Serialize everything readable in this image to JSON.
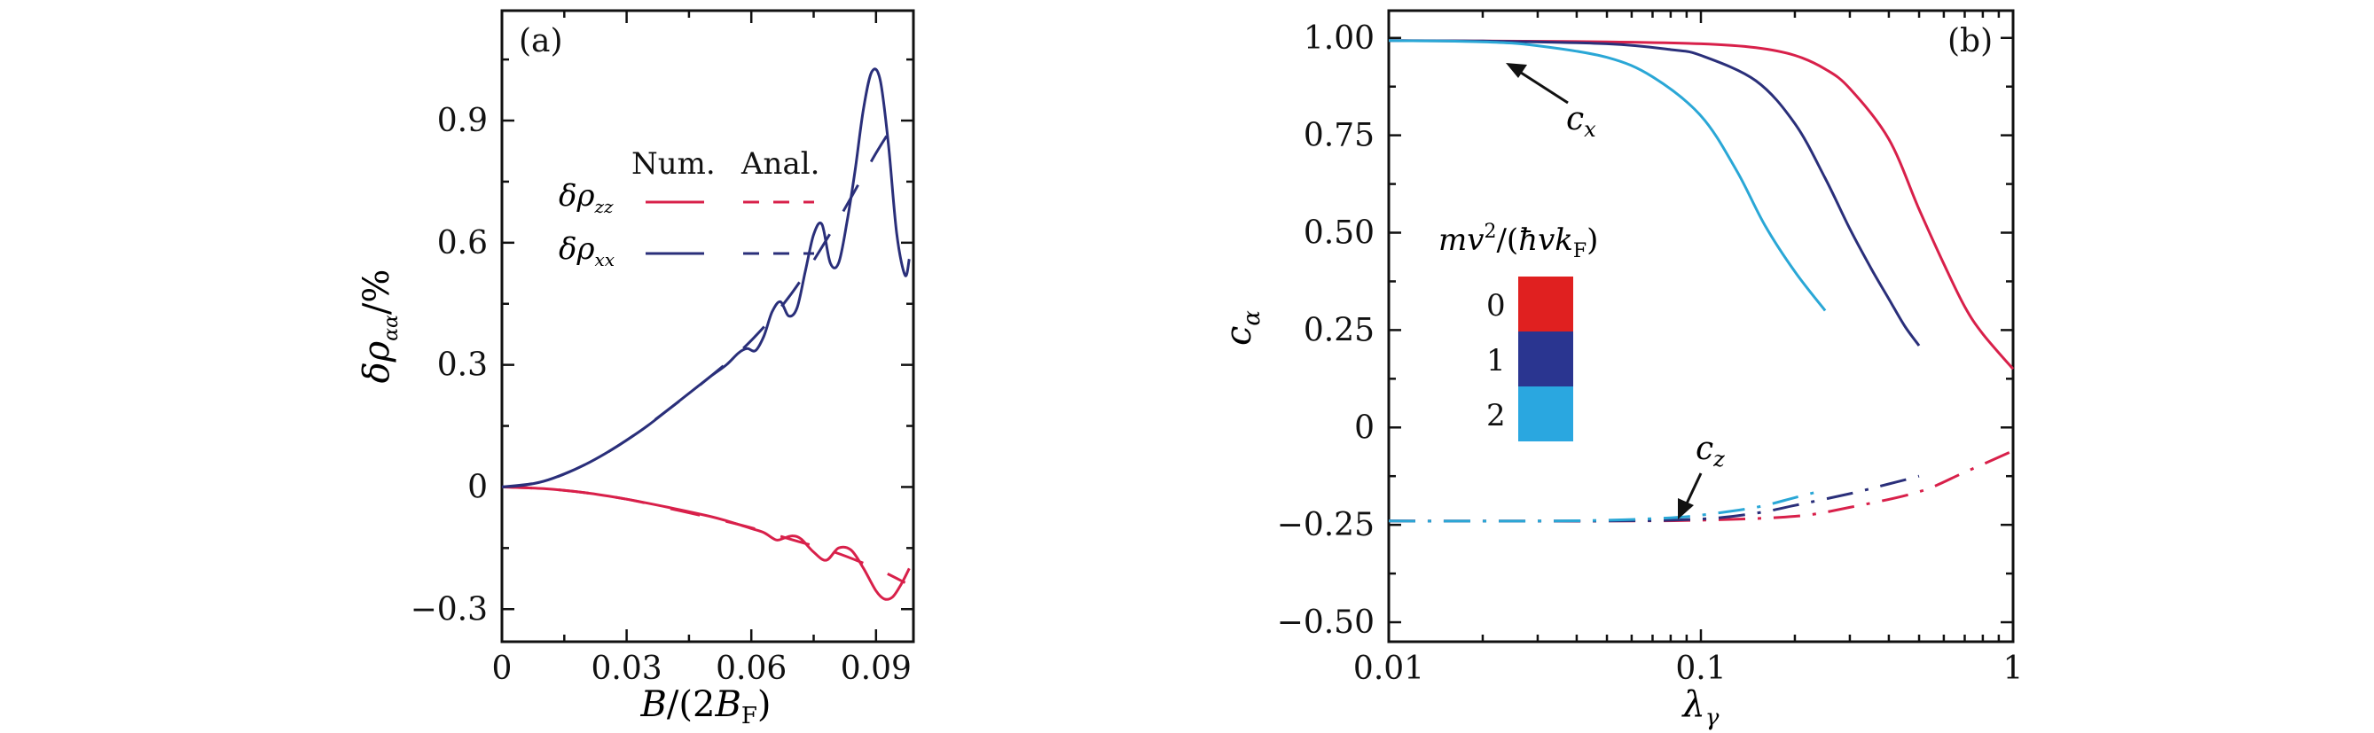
{
  "colors": {
    "red": "#d8204a",
    "navy": "#2a2f7a",
    "cyan": "#2aa7d6",
    "axis": "#111111",
    "swatch_red": "#e02020",
    "swatch_navy": "#2a3590",
    "swatch_cyan": "#2aa7e0"
  },
  "chart_data": [
    {
      "id": "a",
      "type": "line",
      "panel_label": "(a)",
      "xlabel": "B/(2B_F)",
      "ylabel": "δρ_αα/%",
      "xlim": [
        0,
        0.099
      ],
      "ylim": [
        -0.38,
        1.17
      ],
      "xticks": [
        0,
        0.03,
        0.06,
        0.09
      ],
      "xtick_labels": [
        "0",
        "0.03",
        "0.06",
        "0.09"
      ],
      "yticks": [
        -0.3,
        0,
        0.3,
        0.6,
        0.9
      ],
      "ytick_labels": [
        "−0.3",
        "0",
        "0.3",
        "0.6",
        "0.9"
      ],
      "legend": {
        "headers": [
          "Num.",
          "Anal."
        ],
        "rows": [
          {
            "label_base": "δρ",
            "label_sub": "zz",
            "color": "#d8204a"
          },
          {
            "label_base": "δρ",
            "label_sub": "xx",
            "color": "#2a2f7a"
          }
        ]
      },
      "series": [
        {
          "name": "δρ_zz Num.",
          "color": "#d8204a",
          "style": "solid",
          "x": [
            0,
            0.01,
            0.02,
            0.03,
            0.04,
            0.05,
            0.055,
            0.06,
            0.063,
            0.066,
            0.068,
            0.07,
            0.072,
            0.075,
            0.078,
            0.081,
            0.084,
            0.087,
            0.09,
            0.092,
            0.094,
            0.096,
            0.098
          ],
          "y": [
            0,
            -0.004,
            -0.014,
            -0.03,
            -0.05,
            -0.072,
            -0.086,
            -0.102,
            -0.112,
            -0.13,
            -0.125,
            -0.12,
            -0.128,
            -0.16,
            -0.18,
            -0.15,
            -0.155,
            -0.2,
            -0.255,
            -0.275,
            -0.27,
            -0.24,
            -0.2
          ]
        },
        {
          "name": "δρ_zz Anal.",
          "color": "#d8204a",
          "style": "dashed",
          "x": [
            0,
            0.01,
            0.02,
            0.03,
            0.04,
            0.05,
            0.06,
            0.07,
            0.08,
            0.09,
            0.097
          ],
          "y": [
            0,
            -0.004,
            -0.014,
            -0.03,
            -0.052,
            -0.075,
            -0.1,
            -0.13,
            -0.16,
            -0.2,
            -0.235
          ]
        },
        {
          "name": "δρ_xx Num.",
          "color": "#2a2f7a",
          "style": "solid",
          "x": [
            0,
            0.005,
            0.01,
            0.015,
            0.02,
            0.025,
            0.03,
            0.035,
            0.04,
            0.045,
            0.05,
            0.054,
            0.057,
            0.059,
            0.061,
            0.063,
            0.065,
            0.067,
            0.069,
            0.071,
            0.073,
            0.075,
            0.077,
            0.079,
            0.081,
            0.083,
            0.085,
            0.087,
            0.089,
            0.091,
            0.093,
            0.095,
            0.097,
            0.098
          ],
          "y": [
            0,
            0.004,
            0.014,
            0.032,
            0.055,
            0.083,
            0.115,
            0.15,
            0.19,
            0.23,
            0.27,
            0.3,
            0.33,
            0.34,
            0.335,
            0.37,
            0.43,
            0.455,
            0.42,
            0.44,
            0.53,
            0.62,
            0.645,
            0.55,
            0.55,
            0.65,
            0.78,
            0.93,
            1.02,
            1.0,
            0.84,
            0.62,
            0.52,
            0.56
          ]
        },
        {
          "name": "δρ_xx Anal.",
          "color": "#2a2f7a",
          "style": "dashed",
          "x": [
            0,
            0.01,
            0.02,
            0.03,
            0.04,
            0.05,
            0.06,
            0.07,
            0.08,
            0.09,
            0.095
          ],
          "y": [
            0,
            0.014,
            0.055,
            0.115,
            0.19,
            0.27,
            0.36,
            0.48,
            0.64,
            0.82,
            0.9
          ]
        }
      ]
    },
    {
      "id": "b",
      "type": "line",
      "panel_label": "(b)",
      "xlabel": "λ_γ",
      "ylabel": "c_α",
      "xscale": "log",
      "xlim": [
        0.01,
        1
      ],
      "ylim": [
        -0.55,
        1.07
      ],
      "xticks": [
        0.01,
        0.1,
        1
      ],
      "xtick_labels": [
        "0.01",
        "0.1",
        "1"
      ],
      "yticks": [
        -0.5,
        -0.25,
        0,
        0.25,
        0.5,
        0.75,
        1.0
      ],
      "ytick_labels": [
        "−0.50",
        "−0.25",
        "0",
        "0.25",
        "0.50",
        "0.75",
        "1.00"
      ],
      "annotations": [
        {
          "text_base": "c",
          "text_sub": "x",
          "points_to": [
            0.026,
            0.99
          ]
        },
        {
          "text_base": "c",
          "text_sub": "z",
          "points_to": [
            0.088,
            -0.205
          ]
        }
      ],
      "color_legend": {
        "title": "mv²/(ħvk_F)",
        "entries": [
          {
            "label": "0",
            "color": "#e02020"
          },
          {
            "label": "1",
            "color": "#2a3590"
          },
          {
            "label": "2",
            "color": "#2aa7e0"
          }
        ]
      },
      "series": [
        {
          "name": "c_x, 0",
          "color": "#d8204a",
          "style": "solid",
          "x": [
            0.01,
            0.02,
            0.05,
            0.1,
            0.15,
            0.2,
            0.25,
            0.3,
            0.4,
            0.5,
            0.6,
            0.7,
            0.8,
            1.0
          ],
          "y": [
            0.993,
            0.992,
            0.99,
            0.985,
            0.975,
            0.955,
            0.92,
            0.87,
            0.74,
            0.56,
            0.42,
            0.31,
            0.24,
            0.15
          ]
        },
        {
          "name": "c_x, 1",
          "color": "#2a2f7a",
          "style": "solid",
          "x": [
            0.01,
            0.02,
            0.05,
            0.08,
            0.1,
            0.15,
            0.2,
            0.25,
            0.3,
            0.35,
            0.4,
            0.45,
            0.5
          ],
          "y": [
            0.993,
            0.992,
            0.985,
            0.97,
            0.955,
            0.89,
            0.78,
            0.64,
            0.51,
            0.41,
            0.33,
            0.26,
            0.21
          ]
        },
        {
          "name": "c_x, 2",
          "color": "#2aa7d6",
          "style": "solid",
          "x": [
            0.01,
            0.02,
            0.03,
            0.05,
            0.07,
            0.1,
            0.13,
            0.16,
            0.2,
            0.25
          ],
          "y": [
            0.993,
            0.99,
            0.98,
            0.95,
            0.9,
            0.8,
            0.66,
            0.52,
            0.4,
            0.3
          ]
        },
        {
          "name": "c_z, 0",
          "color": "#d8204a",
          "style": "dashdot",
          "x": [
            0.01,
            0.05,
            0.1,
            0.2,
            0.3,
            0.5,
            0.7,
            1.0
          ],
          "y": [
            -0.24,
            -0.24,
            -0.238,
            -0.228,
            -0.205,
            -0.165,
            -0.115,
            -0.06
          ]
        },
        {
          "name": "c_z, 1",
          "color": "#2a2f7a",
          "style": "dashdot",
          "x": [
            0.01,
            0.05,
            0.1,
            0.15,
            0.2,
            0.3,
            0.4,
            0.5
          ],
          "y": [
            -0.24,
            -0.24,
            -0.235,
            -0.22,
            -0.2,
            -0.17,
            -0.145,
            -0.125
          ]
        },
        {
          "name": "c_z, 2",
          "color": "#2aa7d6",
          "style": "dashdot",
          "x": [
            0.01,
            0.03,
            0.05,
            0.08,
            0.1,
            0.15,
            0.2,
            0.25
          ],
          "y": [
            -0.24,
            -0.24,
            -0.238,
            -0.232,
            -0.225,
            -0.205,
            -0.18,
            -0.16
          ]
        }
      ]
    }
  ]
}
